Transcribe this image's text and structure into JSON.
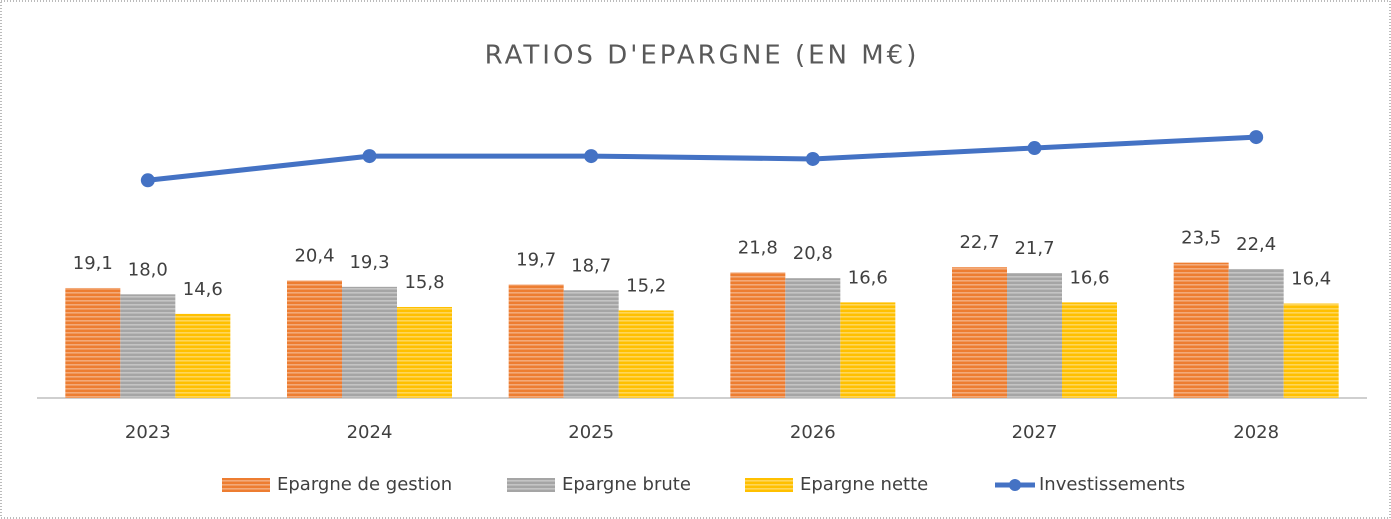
{
  "chart_data": {
    "type": "bar",
    "title": "RATIOS D'EPARGNE (EN M€)",
    "categories": [
      "2023",
      "2024",
      "2025",
      "2026",
      "2027",
      "2028"
    ],
    "ylim": [
      0,
      50
    ],
    "series": [
      {
        "name": "Epargne de gestion",
        "color": "#ED7D31",
        "values": [
          19.1,
          20.4,
          19.7,
          21.8,
          22.7,
          23.5
        ],
        "value_labels": [
          "19,1",
          "20,4",
          "19,7",
          "21,8",
          "22,7",
          "23,5"
        ]
      },
      {
        "name": "Epargne brute",
        "color": "#A5A5A5",
        "values": [
          18.0,
          19.3,
          18.7,
          20.8,
          21.7,
          22.4
        ],
        "value_labels": [
          "18,0",
          "19,3",
          "18,7",
          "20,8",
          "21,7",
          "22,4"
        ]
      },
      {
        "name": "Epargne nette",
        "color": "#FFC000",
        "values": [
          14.6,
          15.8,
          15.2,
          16.6,
          16.6,
          16.4
        ],
        "value_labels": [
          "14,6",
          "15,8",
          "15,2",
          "16,6",
          "16,6",
          "16,4"
        ]
      },
      {
        "name": "Investissements",
        "color": "#4472C4",
        "type": "line",
        "values": [
          37.8,
          42.0,
          42.0,
          41.5,
          43.4,
          45.3
        ]
      }
    ],
    "legend": "bottom"
  }
}
